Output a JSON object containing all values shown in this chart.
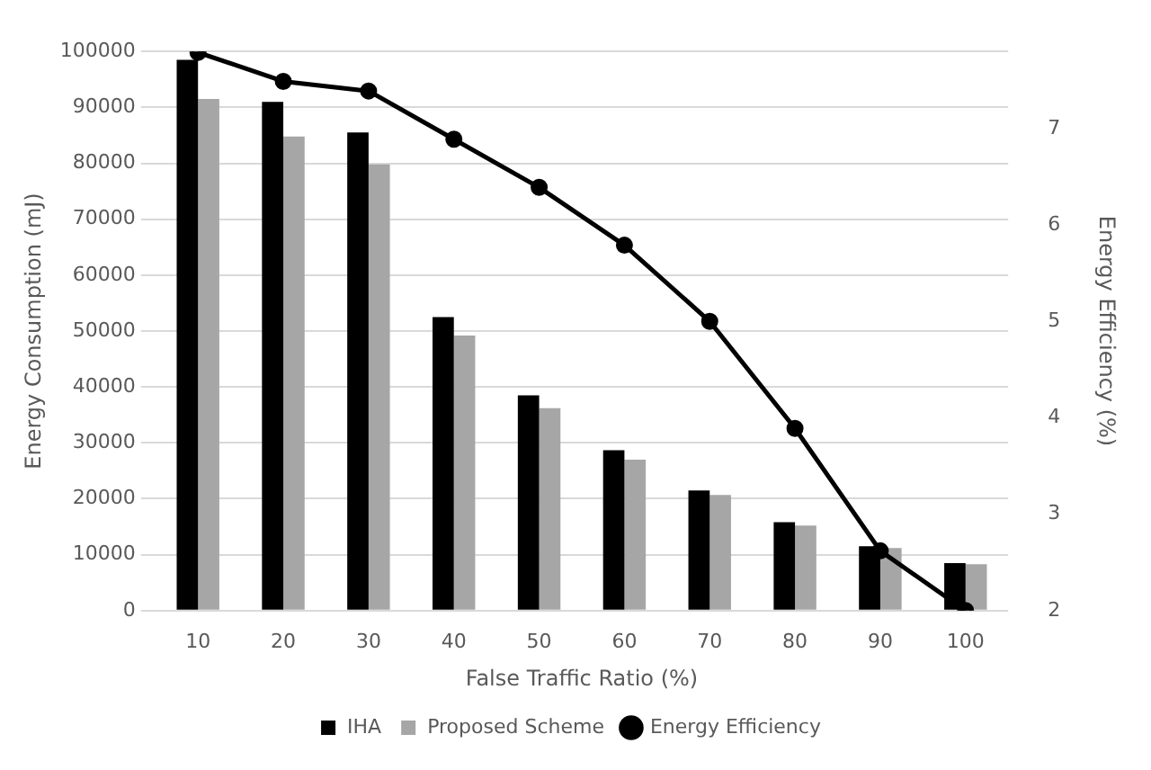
{
  "chart_data": {
    "type": "bar",
    "xlabel": "False Traffic Ratio (%)",
    "ylabel": "Energy Consumption (mJ)",
    "y2label": "Energy Efficiency (%)",
    "categories": [
      "10",
      "20",
      "30",
      "40",
      "50",
      "60",
      "70",
      "80",
      "90",
      "100"
    ],
    "series": [
      {
        "name": "IHA",
        "color": "#000000",
        "values": [
          98500,
          91000,
          85500,
          52500,
          38500,
          28700,
          21500,
          15800,
          11500,
          8500
        ]
      },
      {
        "name": "Proposed Scheme",
        "color": "#a6a6a6",
        "values": [
          91500,
          84800,
          79800,
          49200,
          36200,
          27000,
          20700,
          15200,
          11200,
          8300
        ]
      },
      {
        "name": "Energy Efficiency",
        "type": "line",
        "axis": "y2",
        "color": "#000000",
        "marker": "circle",
        "values": [
          7.79,
          7.49,
          7.39,
          6.89,
          6.39,
          5.79,
          5.0,
          3.89,
          2.62,
          2.0
        ]
      }
    ],
    "ylim": [
      0,
      100000
    ],
    "yticks": [
      0,
      10000,
      20000,
      30000,
      40000,
      50000,
      60000,
      70000,
      80000,
      90000,
      100000
    ],
    "y2lim": [
      2,
      7.8
    ],
    "y2ticks": [
      2,
      3,
      4,
      5,
      6,
      7
    ],
    "grid": "y",
    "legend": "bottom"
  }
}
